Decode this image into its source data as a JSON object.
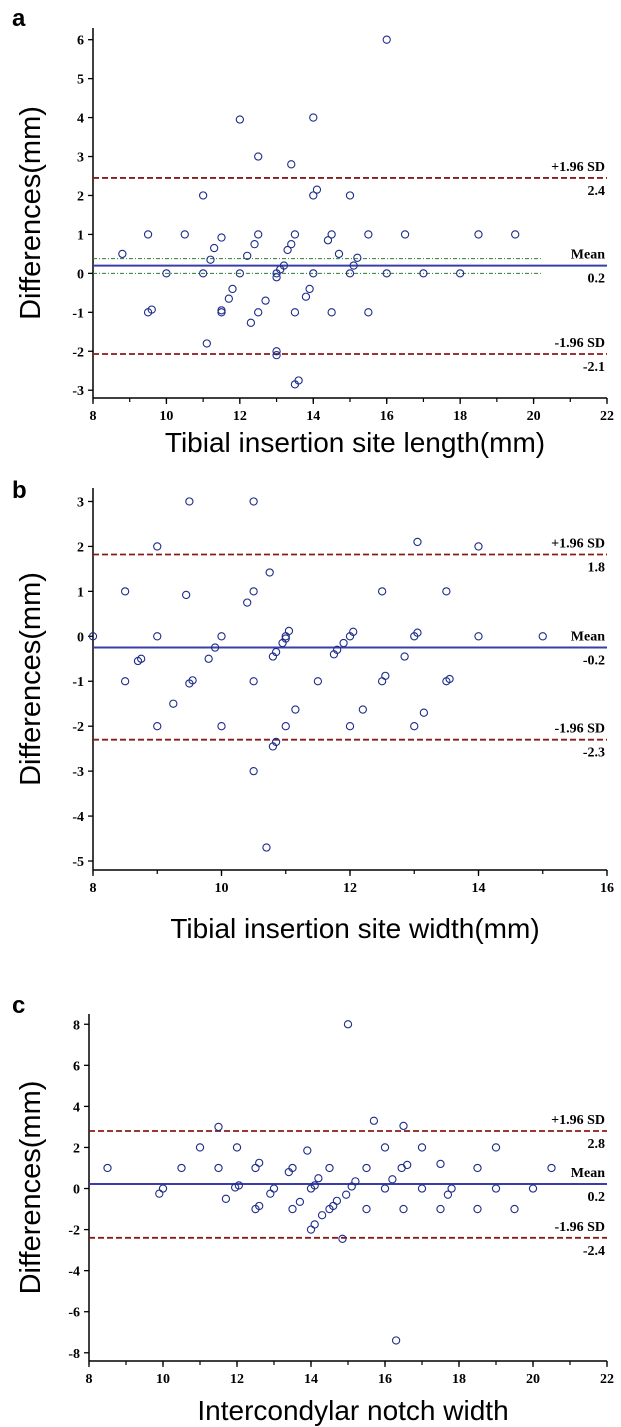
{
  "chart_data": [
    {
      "panel": "a",
      "type": "scatter",
      "xlabel": "Tibial insertion site length(mm)",
      "ylabel": "Differences(mm)",
      "xlim": [
        8,
        22
      ],
      "ylim": [
        -3.2,
        6.3
      ],
      "xticks": [
        8,
        10,
        12,
        14,
        16,
        18,
        20,
        22
      ],
      "yticks": [
        -3,
        -2,
        -1,
        0,
        1,
        2,
        3,
        4,
        5,
        6
      ],
      "mean": 0.2,
      "upper": 2.45,
      "lower": -2.07,
      "ci_lines": [
        0.0,
        0.38
      ],
      "line_x_end": 20.2,
      "labels": {
        "upper_title": "+1.96 SD",
        "upper_value": "2.4",
        "mean_title": "Mean",
        "mean_value": "0.2",
        "lower_title": "-1.96 SD",
        "lower_value": "-2.1"
      },
      "points": [
        [
          16.0,
          6.0
        ],
        [
          12.0,
          3.95
        ],
        [
          14.0,
          4.0
        ],
        [
          12.5,
          3.0
        ],
        [
          13.4,
          2.8
        ],
        [
          11.0,
          2.0
        ],
        [
          14.0,
          2.0
        ],
        [
          14.1,
          2.15
        ],
        [
          15.0,
          2.0
        ],
        [
          8.8,
          0.5
        ],
        [
          9.5,
          1.0
        ],
        [
          10.5,
          1.0
        ],
        [
          11.5,
          0.92
        ],
        [
          11.3,
          0.65
        ],
        [
          11.2,
          0.35
        ],
        [
          12.2,
          0.45
        ],
        [
          12.4,
          0.75
        ],
        [
          12.5,
          1.0
        ],
        [
          13.3,
          0.6
        ],
        [
          13.4,
          0.75
        ],
        [
          13.5,
          1.0
        ],
        [
          14.4,
          0.85
        ],
        [
          14.5,
          1.0
        ],
        [
          14.7,
          0.5
        ],
        [
          15.2,
          0.4
        ],
        [
          15.1,
          0.2
        ],
        [
          15.5,
          1.0
        ],
        [
          16.5,
          1.0
        ],
        [
          18.5,
          1.0
        ],
        [
          19.5,
          1.0
        ],
        [
          10.0,
          0.0
        ],
        [
          11.0,
          0.0
        ],
        [
          12.0,
          0.0
        ],
        [
          13.0,
          0.0
        ],
        [
          13.1,
          0.1
        ],
        [
          13.2,
          0.2
        ],
        [
          14.0,
          0.0
        ],
        [
          15.0,
          0.0
        ],
        [
          16.0,
          0.0
        ],
        [
          17.0,
          0.0
        ],
        [
          18.0,
          0.0
        ],
        [
          9.5,
          -1.0
        ],
        [
          9.6,
          -0.93
        ],
        [
          11.5,
          -1.0
        ],
        [
          11.5,
          -0.95
        ],
        [
          11.7,
          -0.65
        ],
        [
          11.8,
          -0.4
        ],
        [
          12.5,
          -1.0
        ],
        [
          12.3,
          -1.27
        ],
        [
          12.7,
          -0.7
        ],
        [
          13.0,
          -0.1
        ],
        [
          13.5,
          -1.0
        ],
        [
          13.8,
          -0.6
        ],
        [
          13.9,
          -0.4
        ],
        [
          14.5,
          -1.0
        ],
        [
          15.5,
          -1.0
        ],
        [
          11.1,
          -1.8
        ],
        [
          13.0,
          -2.0
        ],
        [
          13.0,
          -2.1
        ],
        [
          13.5,
          -2.85
        ],
        [
          13.6,
          -2.75
        ]
      ]
    },
    {
      "panel": "b",
      "type": "scatter",
      "xlabel": "Tibial insertion site width(mm)",
      "ylabel": "Differences(mm)",
      "xlim": [
        8,
        16
      ],
      "ylim": [
        -5.2,
        3.3
      ],
      "xticks": [
        8,
        10,
        12,
        14,
        16
      ],
      "yticks": [
        -5,
        -4,
        -3,
        -2,
        -1,
        0,
        1,
        2,
        3
      ],
      "mean": -0.25,
      "upper": 1.82,
      "lower": -2.3,
      "ci_lines": [],
      "line_x_end": 16,
      "labels": {
        "upper_title": "+1.96 SD",
        "upper_value": "1.8",
        "mean_title": "Mean",
        "mean_value": "-0.2",
        "lower_title": "-1.96 SD",
        "lower_value": "-2.3"
      },
      "points": [
        [
          9.5,
          3.0
        ],
        [
          10.5,
          3.0
        ],
        [
          9.0,
          2.0
        ],
        [
          13.05,
          2.1
        ],
        [
          14.0,
          2.0
        ],
        [
          8.5,
          1.0
        ],
        [
          9.45,
          0.92
        ],
        [
          10.5,
          1.0
        ],
        [
          10.4,
          0.75
        ],
        [
          10.75,
          1.42
        ],
        [
          12.5,
          1.0
        ],
        [
          13.5,
          1.0
        ],
        [
          8.0,
          0.0
        ],
        [
          9.0,
          0.0
        ],
        [
          10.0,
          0.0
        ],
        [
          11.0,
          0.0
        ],
        [
          11.05,
          0.12
        ],
        [
          12.0,
          0.0
        ],
        [
          12.05,
          0.1
        ],
        [
          13.0,
          0.0
        ],
        [
          13.05,
          0.08
        ],
        [
          14.0,
          0.0
        ],
        [
          15.0,
          0.0
        ],
        [
          8.75,
          -0.5
        ],
        [
          8.7,
          -0.55
        ],
        [
          9.8,
          -0.5
        ],
        [
          9.9,
          -0.25
        ],
        [
          10.8,
          -0.45
        ],
        [
          10.85,
          -0.35
        ],
        [
          10.95,
          -0.15
        ],
        [
          11.0,
          -0.05
        ],
        [
          11.75,
          -0.4
        ],
        [
          11.8,
          -0.3
        ],
        [
          11.9,
          -0.15
        ],
        [
          12.85,
          -0.45
        ],
        [
          8.5,
          -1.0
        ],
        [
          9.5,
          -1.05
        ],
        [
          9.55,
          -0.98
        ],
        [
          10.5,
          -1.0
        ],
        [
          11.5,
          -1.0
        ],
        [
          12.5,
          -1.0
        ],
        [
          12.55,
          -0.88
        ],
        [
          13.5,
          -1.0
        ],
        [
          13.55,
          -0.95
        ],
        [
          9.25,
          -1.5
        ],
        [
          11.15,
          -1.63
        ],
        [
          12.2,
          -1.63
        ],
        [
          13.15,
          -1.7
        ],
        [
          9.0,
          -2.0
        ],
        [
          10.0,
          -2.0
        ],
        [
          11.0,
          -2.0
        ],
        [
          12.0,
          -2.0
        ],
        [
          13.0,
          -2.0
        ],
        [
          10.8,
          -2.45
        ],
        [
          10.85,
          -2.35
        ],
        [
          10.5,
          -3.0
        ],
        [
          10.7,
          -4.7
        ]
      ]
    },
    {
      "panel": "c",
      "type": "scatter",
      "xlabel": "Intercondylar notch width",
      "ylabel": "Differences(mm)",
      "xlim": [
        8,
        22
      ],
      "ylim": [
        -8.4,
        8.5
      ],
      "xticks": [
        8,
        10,
        12,
        14,
        16,
        18,
        20,
        22
      ],
      "yticks": [
        -8,
        -6,
        -4,
        -2,
        0,
        2,
        4,
        6,
        8
      ],
      "mean": 0.22,
      "upper": 2.8,
      "lower": -2.4,
      "ci_lines": [],
      "line_x_end": 22,
      "labels": {
        "upper_title": "+1.96 SD",
        "upper_value": "2.8",
        "mean_title": "Mean",
        "mean_value": "0.2",
        "lower_title": "-1.96 SD",
        "lower_value": "-2.4"
      },
      "points": [
        [
          15.0,
          8.0
        ],
        [
          11.5,
          3.0
        ],
        [
          15.7,
          3.3
        ],
        [
          16.5,
          3.05
        ],
        [
          11.0,
          2.0
        ],
        [
          12.0,
          2.0
        ],
        [
          13.9,
          1.85
        ],
        [
          16.0,
          2.0
        ],
        [
          17.0,
          2.0
        ],
        [
          19.0,
          2.0
        ],
        [
          17.5,
          1.2
        ],
        [
          16.6,
          1.15
        ],
        [
          12.6,
          1.25
        ],
        [
          8.5,
          1.0
        ],
        [
          10.5,
          1.0
        ],
        [
          11.5,
          1.0
        ],
        [
          12.5,
          1.0
        ],
        [
          13.4,
          0.8
        ],
        [
          13.5,
          1.0
        ],
        [
          14.5,
          1.0
        ],
        [
          15.5,
          1.0
        ],
        [
          16.45,
          1.0
        ],
        [
          18.5,
          1.0
        ],
        [
          20.5,
          1.0
        ],
        [
          16.2,
          0.45
        ],
        [
          10.0,
          0.0
        ],
        [
          11.95,
          0.05
        ],
        [
          12.05,
          0.15
        ],
        [
          13.0,
          0.0
        ],
        [
          14.0,
          0.0
        ],
        [
          14.1,
          0.15
        ],
        [
          14.2,
          0.5
        ],
        [
          15.1,
          0.1
        ],
        [
          15.2,
          0.35
        ],
        [
          16.0,
          0.0
        ],
        [
          17.0,
          0.0
        ],
        [
          17.8,
          0.0
        ],
        [
          19.0,
          0.0
        ],
        [
          20.0,
          0.0
        ],
        [
          9.9,
          -0.25
        ],
        [
          11.7,
          -0.5
        ],
        [
          12.9,
          -0.25
        ],
        [
          14.95,
          -0.3
        ],
        [
          17.7,
          -0.3
        ],
        [
          12.5,
          -1.0
        ],
        [
          12.6,
          -0.85
        ],
        [
          13.5,
          -1.0
        ],
        [
          13.7,
          -0.65
        ],
        [
          14.3,
          -1.3
        ],
        [
          14.5,
          -1.0
        ],
        [
          14.6,
          -0.85
        ],
        [
          14.7,
          -0.6
        ],
        [
          15.5,
          -1.0
        ],
        [
          16.5,
          -1.0
        ],
        [
          17.5,
          -1.0
        ],
        [
          18.5,
          -1.0
        ],
        [
          19.5,
          -1.0
        ],
        [
          14.0,
          -2.0
        ],
        [
          14.1,
          -1.75
        ],
        [
          14.85,
          -2.45
        ],
        [
          16.3,
          -7.4
        ]
      ]
    }
  ]
}
